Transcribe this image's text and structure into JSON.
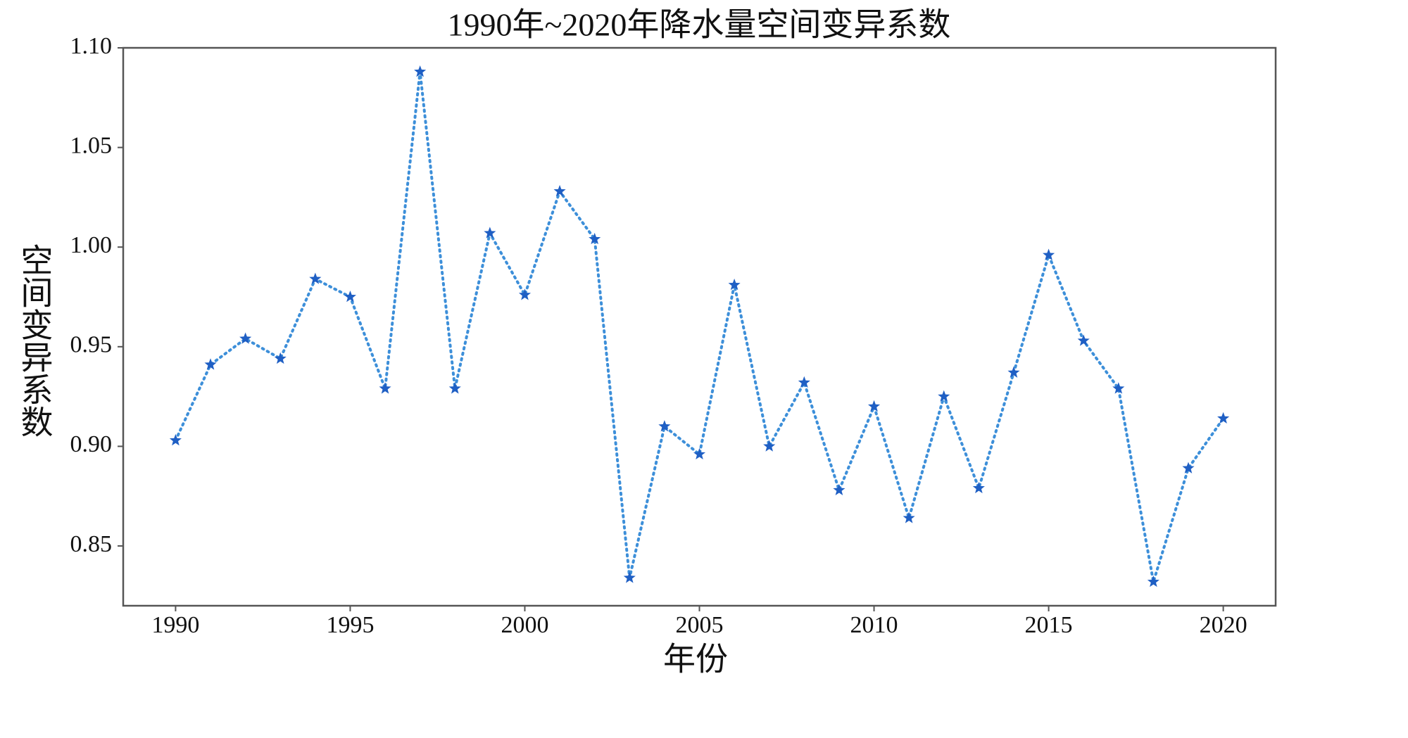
{
  "chart_data": {
    "type": "line",
    "title": "1990年~2020年降水量空间变异系数",
    "x_label": "年份",
    "y_label": "空间变异系数",
    "x": [
      1990,
      1991,
      1992,
      1993,
      1994,
      1995,
      1996,
      1997,
      1998,
      1999,
      2000,
      2001,
      2002,
      2003,
      2004,
      2005,
      2006,
      2007,
      2008,
      2009,
      2010,
      2011,
      2012,
      2013,
      2014,
      2015,
      2016,
      2017,
      2018,
      2019,
      2020
    ],
    "values": [
      0.903,
      0.941,
      0.954,
      0.944,
      0.984,
      0.975,
      0.929,
      1.088,
      0.929,
      1.007,
      0.976,
      1.028,
      1.004,
      0.834,
      0.91,
      0.896,
      0.981,
      0.9,
      0.932,
      0.878,
      0.92,
      0.864,
      0.925,
      0.879,
      0.937,
      0.996,
      0.953,
      0.929,
      0.832,
      0.889,
      0.914
    ],
    "color": "#3d8fd9",
    "marker_color": "#1f5fc4",
    "xlim": [
      1988.5,
      2021.5
    ],
    "ylim": [
      0.82,
      1.1
    ],
    "xticks": [
      1990,
      1995,
      2000,
      2005,
      2010,
      2015,
      2020
    ],
    "yticks": [
      {
        "value": 1.1,
        "label": "1.10"
      },
      1.05,
      {
        "value": 1.0,
        "label": "1.00"
      },
      0.95,
      {
        "value": 0.9,
        "label": "0.90"
      },
      0.85
    ],
    "grid": false
  }
}
